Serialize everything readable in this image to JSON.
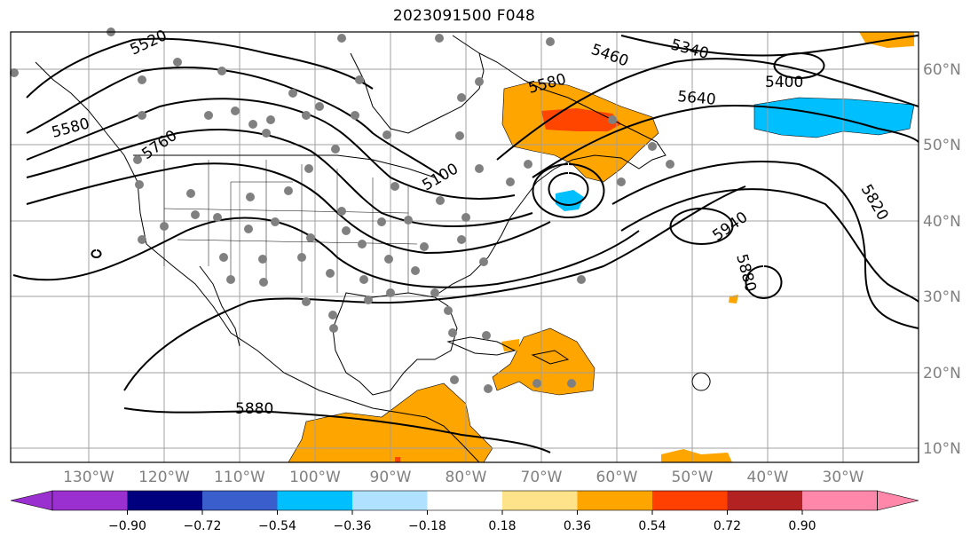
{
  "title": "2023091500 F048",
  "lon_labels": [
    "130°W",
    "120°W",
    "110°W",
    "100°W",
    "90°W",
    "80°W",
    "70°W",
    "60°W",
    "50°W",
    "40°W",
    "30°W"
  ],
  "lat_labels": [
    "60°N",
    "50°N",
    "40°N",
    "30°N",
    "20°N",
    "10°N"
  ],
  "contour_labels": [
    "5520",
    "5460",
    "5340",
    "5400",
    "5640",
    "5580",
    "5580",
    "5760",
    "5100",
    "5940",
    "5880",
    "5820",
    "5880"
  ],
  "colorbar": {
    "ticks": [
      "−0.90",
      "−0.72",
      "−0.54",
      "−0.36",
      "−0.18",
      "0.18",
      "0.36",
      "0.54",
      "0.72",
      "0.90"
    ],
    "colors": [
      "#9b30d0",
      "#00007f",
      "#3a5fcd",
      "#00bfff",
      "#b0e2ff",
      "#ffffff",
      "#ffe38a",
      "#ffa500",
      "#ff4000",
      "#b22222",
      "#ff88aa"
    ],
    "under": "#9b30d0",
    "over": "#ff88aa"
  },
  "colors": {
    "positive_fill": "#ffa500",
    "strong_positive_fill": "#ff4500",
    "negative_fill": "#00bfff",
    "station_dot": "#808080",
    "contour": "#000000",
    "grid": "#a0a0a0"
  }
}
